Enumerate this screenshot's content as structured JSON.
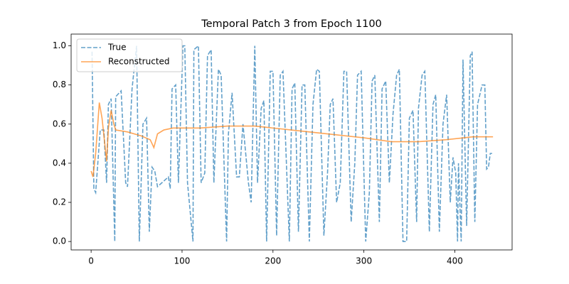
{
  "chart_data": {
    "type": "line",
    "title": "Temporal Patch 3 from Epoch 1100",
    "xlim": [
      -22,
      463
    ],
    "ylim": [
      -0.043,
      1.06
    ],
    "xticks": [
      0,
      100,
      200,
      300,
      400
    ],
    "yticks": [
      {
        "value": 0,
        "label": "0.0"
      },
      {
        "value": 0.2,
        "label": "0.2"
      },
      {
        "value": 0.4,
        "label": "0.4"
      },
      {
        "value": 0.6,
        "label": "0.6"
      },
      {
        "value": 0.8,
        "label": "0.8"
      },
      {
        "value": 1.0,
        "label": "1.0"
      }
    ],
    "legend": "upper left",
    "series": [
      {
        "name": "True",
        "color": "#1f77b4",
        "linestyle": "dashed",
        "x": [
          1,
          3,
          5,
          10,
          14,
          17,
          19,
          22,
          26,
          27,
          33,
          38,
          40,
          45,
          50,
          53,
          57,
          61,
          64,
          67,
          70,
          73,
          85,
          87,
          89,
          93,
          96,
          101,
          103,
          106,
          112,
          113,
          118,
          121,
          125,
          128,
          132,
          135,
          140,
          143,
          149,
          151,
          155,
          160,
          163,
          167,
          173,
          176,
          180,
          183,
          187,
          190,
          193,
          197,
          200,
          204,
          208,
          211,
          218,
          221,
          224,
          228,
          232,
          235,
          240,
          244,
          248,
          251,
          256,
          260,
          263,
          266,
          270,
          274,
          278,
          281,
          286,
          290,
          293,
          297,
          302,
          306,
          309,
          312,
          317,
          320,
          324,
          328,
          332,
          336,
          339,
          343,
          347,
          350,
          354,
          358,
          360,
          364,
          367,
          372,
          376,
          379,
          383,
          387,
          391,
          395,
          398,
          401,
          403,
          404,
          407,
          409,
          413,
          417,
          419,
          422,
          425,
          430,
          433,
          435,
          437,
          439,
          441
        ],
        "values": [
          0.97,
          0.27,
          0.25,
          0.57,
          0.57,
          0.3,
          0.7,
          0.73,
          0.0,
          0.74,
          0.77,
          0.3,
          0.28,
          0.78,
          1.0,
          0.0,
          0.6,
          0.63,
          0.05,
          0.38,
          0.36,
          0.28,
          0.33,
          0.27,
          0.78,
          0.8,
          0.3,
          1.0,
          1.0,
          0.3,
          0.0,
          0.98,
          1.0,
          0.3,
          0.35,
          0.95,
          0.98,
          0.3,
          0.88,
          0.85,
          0.0,
          0.55,
          0.76,
          0.33,
          0.33,
          0.6,
          0.3,
          0.2,
          1.0,
          0.3,
          0.68,
          0.72,
          0.0,
          0.87,
          0.87,
          0.03,
          0.85,
          0.87,
          0.0,
          0.78,
          0.81,
          0.05,
          0.8,
          0.8,
          0.0,
          0.7,
          0.88,
          0.87,
          0.03,
          0.35,
          0.7,
          0.73,
          0.2,
          0.3,
          0.87,
          0.87,
          0.1,
          0.4,
          0.85,
          0.87,
          0.0,
          0.25,
          0.82,
          0.85,
          0.1,
          0.78,
          0.82,
          0.3,
          0.65,
          0.85,
          0.88,
          0.0,
          0.0,
          0.63,
          0.67,
          0.1,
          0.68,
          0.85,
          0.87,
          0.05,
          0.7,
          0.75,
          0.05,
          0.6,
          0.75,
          0.2,
          0.43,
          0.35,
          0.0,
          0.4,
          0.0,
          0.93,
          0.08,
          0.95,
          0.97,
          0.1,
          0.7,
          0.8,
          0.8,
          0.37,
          0.38,
          0.45,
          0.45
        ]
      },
      {
        "name": "Reconstructed",
        "color": "#ff7f0e",
        "linestyle": "solid",
        "x": [
          0,
          2,
          5,
          9,
          12,
          15,
          17,
          19,
          22,
          25,
          27,
          40,
          55,
          65,
          69,
          73,
          80,
          90,
          120,
          150,
          180,
          220,
          260,
          300,
          330,
          360,
          390,
          420,
          442
        ],
        "values": [
          0.36,
          0.33,
          0.45,
          0.71,
          0.63,
          0.5,
          0.41,
          0.58,
          0.67,
          0.6,
          0.57,
          0.56,
          0.54,
          0.52,
          0.48,
          0.55,
          0.57,
          0.58,
          0.58,
          0.59,
          0.59,
          0.57,
          0.55,
          0.53,
          0.51,
          0.51,
          0.52,
          0.535,
          0.535
        ]
      }
    ]
  }
}
